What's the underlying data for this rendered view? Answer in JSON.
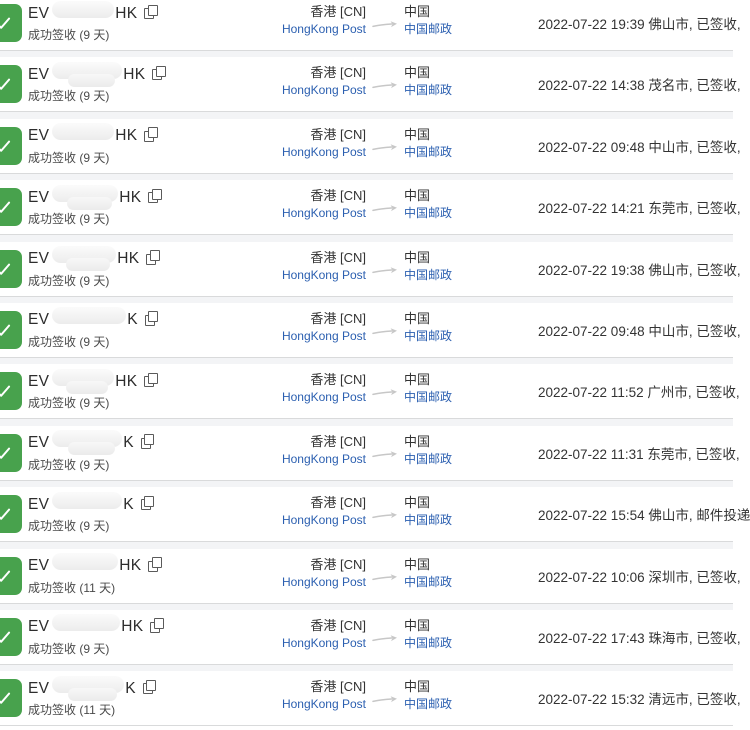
{
  "icons": {
    "check": "white check mark in green rounded square — ✓",
    "copy": "two overlapping squares outline — ⧉",
    "arrow": "light gray right arrow between carriers — ⟶"
  },
  "colors": {
    "success_green": "#48a24d",
    "link_blue": "#2b5fb0",
    "text_dark": "#333333",
    "status_text": "#4a4a4a",
    "row_divider": "#d9dadb",
    "gap_background": "#f3f4f6"
  },
  "list": {
    "rows": [
      {
        "tracking_prefix": "EV",
        "tracking_suffix": "HK",
        "tracking_masked": true,
        "mask_width": 62,
        "mask_tall": false,
        "status": "成功签收 (9 天)",
        "origin_region": "香港 [CN]",
        "origin_carrier": "HongKong Post",
        "dest_region": "中国",
        "dest_carrier": "中国邮政",
        "latest_event": "2022-07-22 19:39 佛山市, 已签收,"
      },
      {
        "tracking_prefix": "EV",
        "tracking_suffix": "HK",
        "tracking_masked": true,
        "mask_width": 70,
        "mask_tall": true,
        "status": "成功签收 (9 天)",
        "origin_region": "香港 [CN]",
        "origin_carrier": "HongKong Post",
        "dest_region": "中国",
        "dest_carrier": "中国邮政",
        "latest_event": "2022-07-22 14:38 茂名市, 已签收,"
      },
      {
        "tracking_prefix": "EV",
        "tracking_suffix": "HK",
        "tracking_masked": true,
        "mask_width": 62,
        "mask_tall": false,
        "status": "成功签收 (9 天)",
        "origin_region": "香港 [CN]",
        "origin_carrier": "HongKong Post",
        "dest_region": "中国",
        "dest_carrier": "中国邮政",
        "latest_event": "2022-07-22 09:48 中山市, 已签收,"
      },
      {
        "tracking_prefix": "EV",
        "tracking_suffix": "HK",
        "tracking_masked": true,
        "mask_width": 66,
        "mask_tall": true,
        "status": "成功签收 (9 天)",
        "origin_region": "香港 [CN]",
        "origin_carrier": "HongKong Post",
        "dest_region": "中国",
        "dest_carrier": "中国邮政",
        "latest_event": "2022-07-22 14:21 东莞市, 已签收,"
      },
      {
        "tracking_prefix": "EV",
        "tracking_suffix": "HK",
        "tracking_masked": true,
        "mask_width": 64,
        "mask_tall": true,
        "status": "成功签收 (9 天)",
        "origin_region": "香港 [CN]",
        "origin_carrier": "HongKong Post",
        "dest_region": "中国",
        "dest_carrier": "中国邮政",
        "latest_event": "2022-07-22 19:38 佛山市, 已签收,"
      },
      {
        "tracking_prefix": "EV",
        "tracking_suffix": "K",
        "tracking_masked": true,
        "mask_width": 74,
        "mask_tall": false,
        "status": "成功签收 (9 天)",
        "origin_region": "香港 [CN]",
        "origin_carrier": "HongKong Post",
        "dest_region": "中国",
        "dest_carrier": "中国邮政",
        "latest_event": "2022-07-22 09:48 中山市, 已签收,"
      },
      {
        "tracking_prefix": "EV",
        "tracking_suffix": "HK",
        "tracking_masked": true,
        "mask_width": 62,
        "mask_tall": true,
        "status": "成功签收 (9 天)",
        "origin_region": "香港 [CN]",
        "origin_carrier": "HongKong Post",
        "dest_region": "中国",
        "dest_carrier": "中国邮政",
        "latest_event": "2022-07-22 11:52 广州市, 已签收,"
      },
      {
        "tracking_prefix": "EV",
        "tracking_suffix": "K",
        "tracking_masked": true,
        "mask_width": 70,
        "mask_tall": true,
        "status": "成功签收 (9 天)",
        "origin_region": "香港 [CN]",
        "origin_carrier": "HongKong Post",
        "dest_region": "中国",
        "dest_carrier": "中国邮政",
        "latest_event": "2022-07-22 11:31 东莞市, 已签收,"
      },
      {
        "tracking_prefix": "EV",
        "tracking_suffix": "K",
        "tracking_masked": true,
        "mask_width": 70,
        "mask_tall": false,
        "status": "成功签收 (9 天)",
        "origin_region": "香港 [CN]",
        "origin_carrier": "HongKong Post",
        "dest_region": "中国",
        "dest_carrier": "中国邮政",
        "latest_event": "2022-07-22 15:54 佛山市, 邮件投递"
      },
      {
        "tracking_prefix": "EV",
        "tracking_suffix": "HK",
        "tracking_masked": true,
        "mask_width": 66,
        "mask_tall": false,
        "status": "成功签收 (11 天)",
        "origin_region": "香港 [CN]",
        "origin_carrier": "HongKong Post",
        "dest_region": "中国",
        "dest_carrier": "中国邮政",
        "latest_event": "2022-07-22 10:06 深圳市, 已签收,"
      },
      {
        "tracking_prefix": "EV",
        "tracking_suffix": "HK",
        "tracking_masked": true,
        "mask_width": 68,
        "mask_tall": false,
        "status": "成功签收 (9 天)",
        "origin_region": "香港 [CN]",
        "origin_carrier": "HongKong Post",
        "dest_region": "中国",
        "dest_carrier": "中国邮政",
        "latest_event": "2022-07-22 17:43 珠海市, 已签收,"
      },
      {
        "tracking_prefix": "EV",
        "tracking_suffix": "K",
        "tracking_masked": true,
        "mask_width": 72,
        "mask_tall": true,
        "status": "成功签收 (11 天)",
        "origin_region": "香港 [CN]",
        "origin_carrier": "HongKong Post",
        "dest_region": "中国",
        "dest_carrier": "中国邮政",
        "latest_event": "2022-07-22 15:32 清远市, 已签收,"
      }
    ]
  }
}
